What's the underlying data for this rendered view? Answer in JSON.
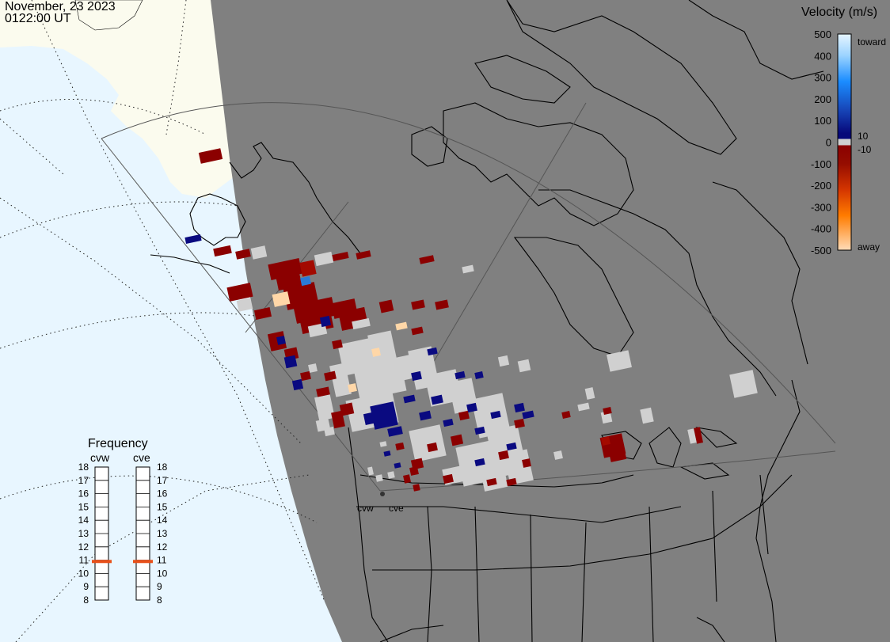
{
  "header": {
    "date": "November, 23 2023",
    "time": "0122:00 UT"
  },
  "legend": {
    "title": "Velocity (m/s)",
    "ticks": [
      "500",
      "400",
      "300",
      "200",
      "100",
      "0",
      "-100",
      "-200",
      "-300",
      "-400",
      "-500"
    ],
    "toward_label": "toward",
    "away_label": "away",
    "plus_threshold": "10",
    "minus_threshold": "-10",
    "colors": {
      "toward_500": "#d6efff",
      "toward_300": "#1e90ff",
      "toward_100": "#1c3fa8",
      "toward_low": "#0a0a80",
      "ground_scatter": "#d0d0d0",
      "away_low": "#8b0000",
      "away_200": "#b22200",
      "away_300": "#e05a00",
      "away_400": "#ff9a1a",
      "away_500": "#ffd7a8"
    }
  },
  "frequency": {
    "title": "Frequency",
    "radar_left": "cvw",
    "radar_right": "cve",
    "scale": [
      "18",
      "17",
      "16",
      "15",
      "14",
      "13",
      "12",
      "11",
      "10",
      "9",
      "8"
    ],
    "cvw_mhz": 10.9,
    "cve_mhz": 10.9,
    "marker_color": "#e8501a"
  },
  "radar_sites": {
    "cvw": "cvw",
    "cve": "cve"
  },
  "map_colors": {
    "night": "#808080",
    "day_ocean": "#e8f6ff",
    "day_land": "#fbfbee",
    "coast": "#000000"
  }
}
